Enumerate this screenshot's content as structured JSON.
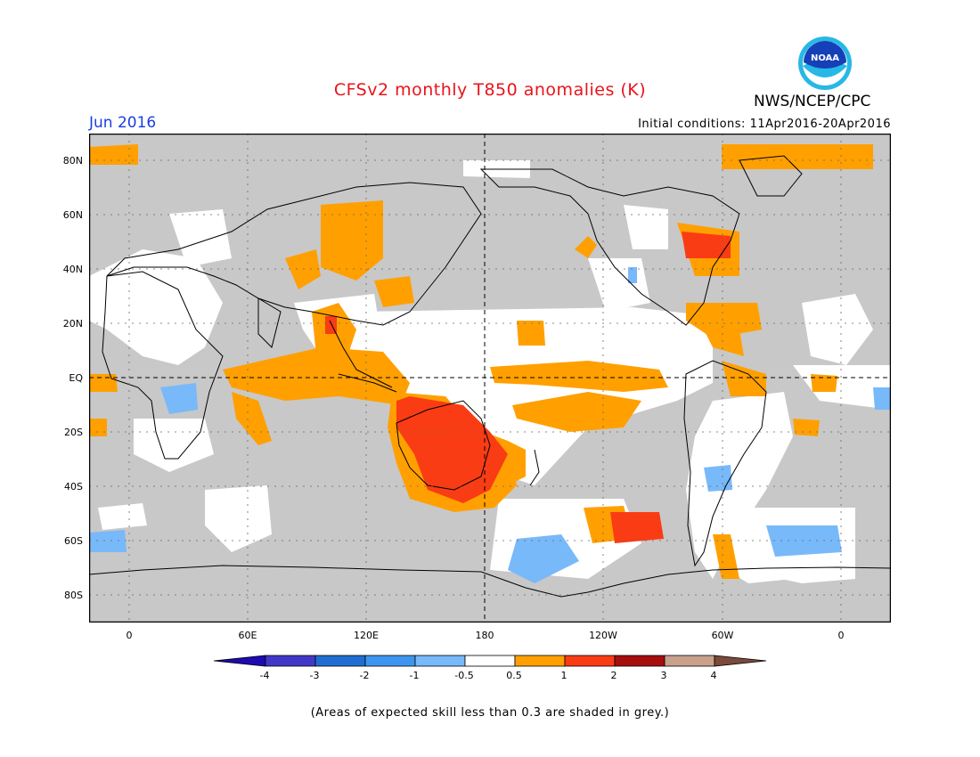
{
  "header": {
    "title": "CFSv2 monthly T850 anomalies (K)",
    "month": "Jun 2016",
    "initial_conditions": "Initial conditions: 11Apr2016-20Apr2016",
    "agency": "NWS/NCEP/CPC",
    "logo_text": "NOAA"
  },
  "map": {
    "lat_labels": [
      "80N",
      "60N",
      "40N",
      "20N",
      "EQ",
      "20S",
      "40S",
      "60S",
      "80S"
    ],
    "lon_labels": [
      "0",
      "60E",
      "120E",
      "180",
      "120W",
      "60W",
      "0"
    ],
    "colors": {
      "grey_low_skill": "#c8c8c8",
      "neutral": "#ffffff",
      "orange": "#ffa000",
      "red_orange": "#fa3c14",
      "red": "#e22b1c",
      "light_blue": "#78b9fa",
      "blue": "#4697f0",
      "coast": "#000000"
    }
  },
  "colorbar": {
    "labels": [
      "-4",
      "-3",
      "-2",
      "-1",
      "-0.5",
      "0.5",
      "1",
      "2",
      "3",
      "4"
    ],
    "colors": [
      "#1e0ab4",
      "#4238c8",
      "#1e6ed2",
      "#3c96f0",
      "#78b9fa",
      "#ffffff",
      "#ffa000",
      "#fa3c14",
      "#a60e0e",
      "#c8a08c",
      "#7a4a3a"
    ]
  },
  "footnote": "(Areas of expected skill less than 0.3 are shaded in grey.)"
}
